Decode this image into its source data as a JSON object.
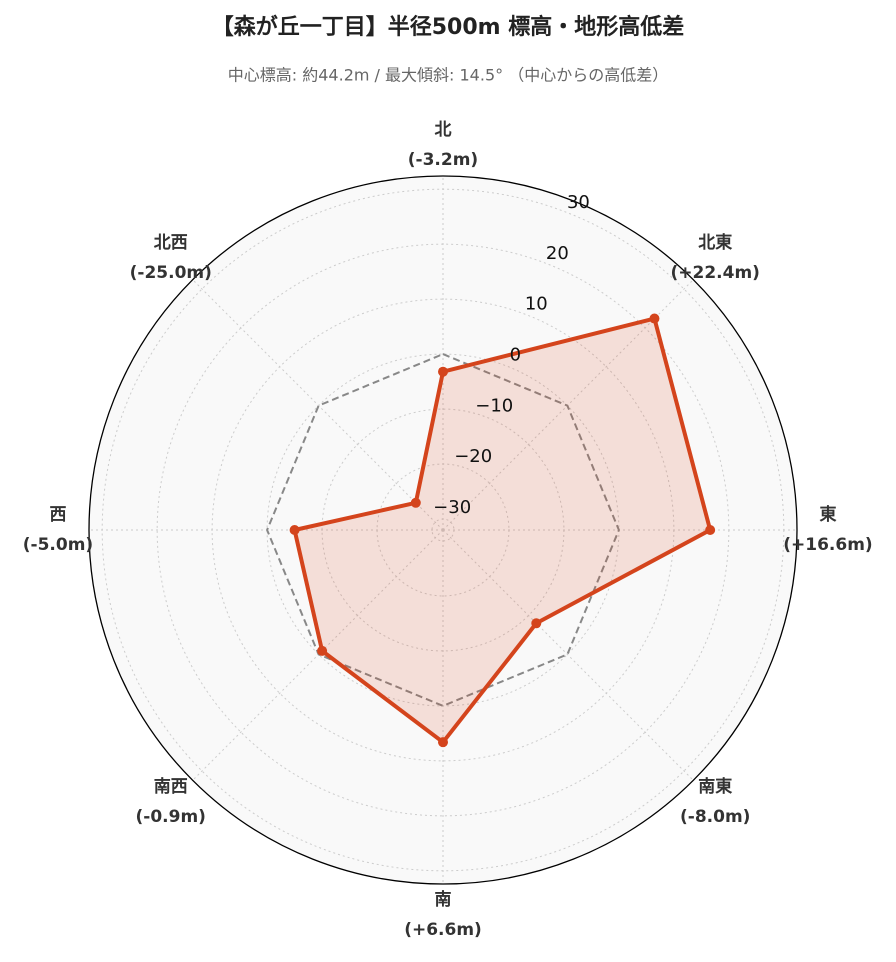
{
  "chart_data": {
    "type": "radar",
    "title": "【森が丘一丁目】半径500m 標高・地形高低差",
    "subtitle": "中心標高: 約44.2m / 最大傾斜: 14.5° （中心からの高低差）",
    "categories": [
      "北",
      "北東",
      "東",
      "南東",
      "南",
      "南西",
      "西",
      "北西"
    ],
    "series": [
      {
        "color": "#d4441c",
        "values": [
          -3.2,
          22.4,
          16.6,
          -8.0,
          6.6,
          -0.9,
          -5.0,
          -25.0
        ],
        "value_labels": [
          "(-3.2m)",
          "(+22.4m)",
          "(+16.6m)",
          "(-8.0m)",
          "(+6.6m)",
          "(-0.9m)",
          "(-5.0m)",
          "(-25.0m)"
        ]
      },
      {
        "color": "#888888",
        "values": [
          0,
          0,
          0,
          0,
          0,
          0,
          0,
          0
        ],
        "dashed": true
      }
    ],
    "ylim": [
      -32,
      32.4
    ],
    "yticks": [
      {
        "value": -30,
        "label": "−30"
      },
      {
        "value": -20,
        "label": "−20"
      },
      {
        "value": -10,
        "label": "−10"
      },
      0,
      10,
      20,
      30
    ],
    "grid": true
  }
}
